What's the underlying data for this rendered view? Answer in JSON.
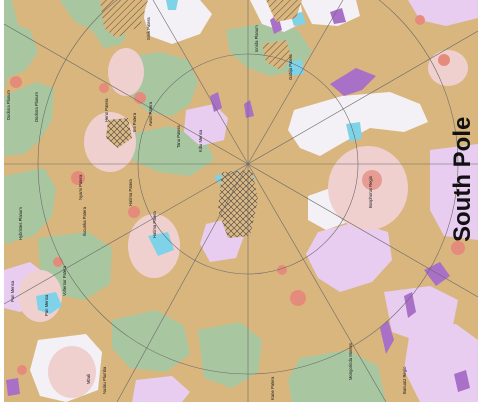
{
  "map": {
    "title": "South Pole",
    "colors": {
      "background": "#d9b67e",
      "plains_green": "#a8c7a0",
      "bright_white": "#f4f1f6",
      "lavender": "#e8cdf0",
      "purple": "#a970c8",
      "pink_light": "#efd0cf",
      "pink": "#e69b93",
      "red_patera": "#e58b7c",
      "cyan": "#7fd3e8",
      "grid_line": "#6a6a6a"
    },
    "features": [
      {
        "name": "Dodona Planum"
      },
      {
        "name": "Dodona Planum"
      },
      {
        "name": "Heno Patera"
      },
      {
        "name": "Inti Patera"
      },
      {
        "name": "Awori Patera"
      },
      {
        "name": "Nyami Patera"
      },
      {
        "name": "Tanu Patera"
      },
      {
        "name": "Hybristes Planum"
      },
      {
        "name": "Ilucunka Patera"
      },
      {
        "name": "Voltentur Patera"
      },
      {
        "name": "Hatima Patera"
      },
      {
        "name": "Hatima Patera"
      },
      {
        "name": "Pan Mensa"
      },
      {
        "name": "Pan Mensa"
      },
      {
        "name": "Mbali"
      },
      {
        "name": "Nusku Plumba"
      },
      {
        "name": "Kibu Mensa"
      },
      {
        "name": "Kane Patera"
      },
      {
        "name": "Ionida Planum"
      },
      {
        "name": "Gabija Patera"
      },
      {
        "name": "Bosphorus Regio"
      },
      {
        "name": "Mongorinda Montes"
      },
      {
        "name": "Banuatz Regio"
      },
      {
        "name": "Sinik Patera"
      }
    ]
  }
}
